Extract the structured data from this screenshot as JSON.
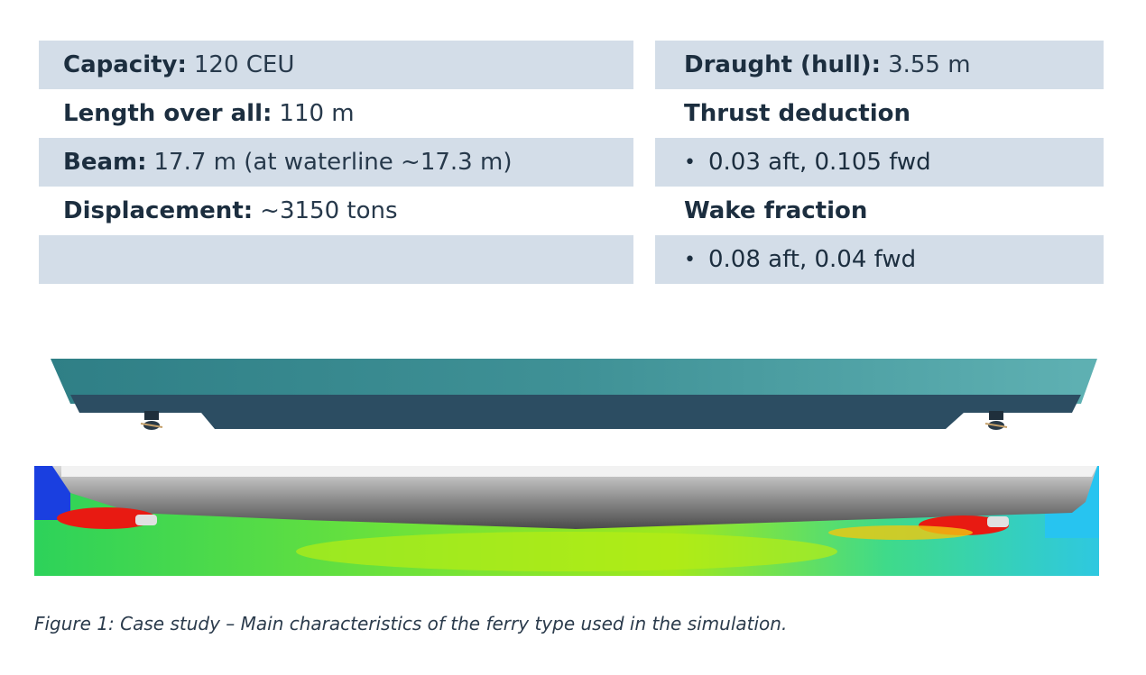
{
  "specs_left": [
    {
      "label": "Capacity:",
      "value": "120 CEU"
    },
    {
      "label": "Length over all:",
      "value": "110 m"
    },
    {
      "label": "Beam:",
      "value": "17.7 m (at waterline ~17.3 m)"
    },
    {
      "label": "Displacement:",
      "value": "~3150 tons"
    }
  ],
  "specs_right": {
    "draught_label": "Draught (hull):",
    "draught_value": "3.55 m",
    "thrust_heading": "Thrust deduction",
    "thrust_value": "0.03 aft, 0.105 fwd",
    "wake_heading": "Wake fraction",
    "wake_value": "0.08 aft, 0.04 fwd",
    "bullet": "•"
  },
  "colors": {
    "row_shade": "#d3dde8",
    "text": "#1c2e3f",
    "hull_top": "#3c8e93",
    "hull_bottom": "#2d4e63"
  },
  "figures": {
    "hull_render": "ship-hull-side-view",
    "cfd_render": "cfd-wake-velocity-field"
  },
  "caption": "Figure 1: Case study – Main characteristics of the ferry type used in the simulation."
}
